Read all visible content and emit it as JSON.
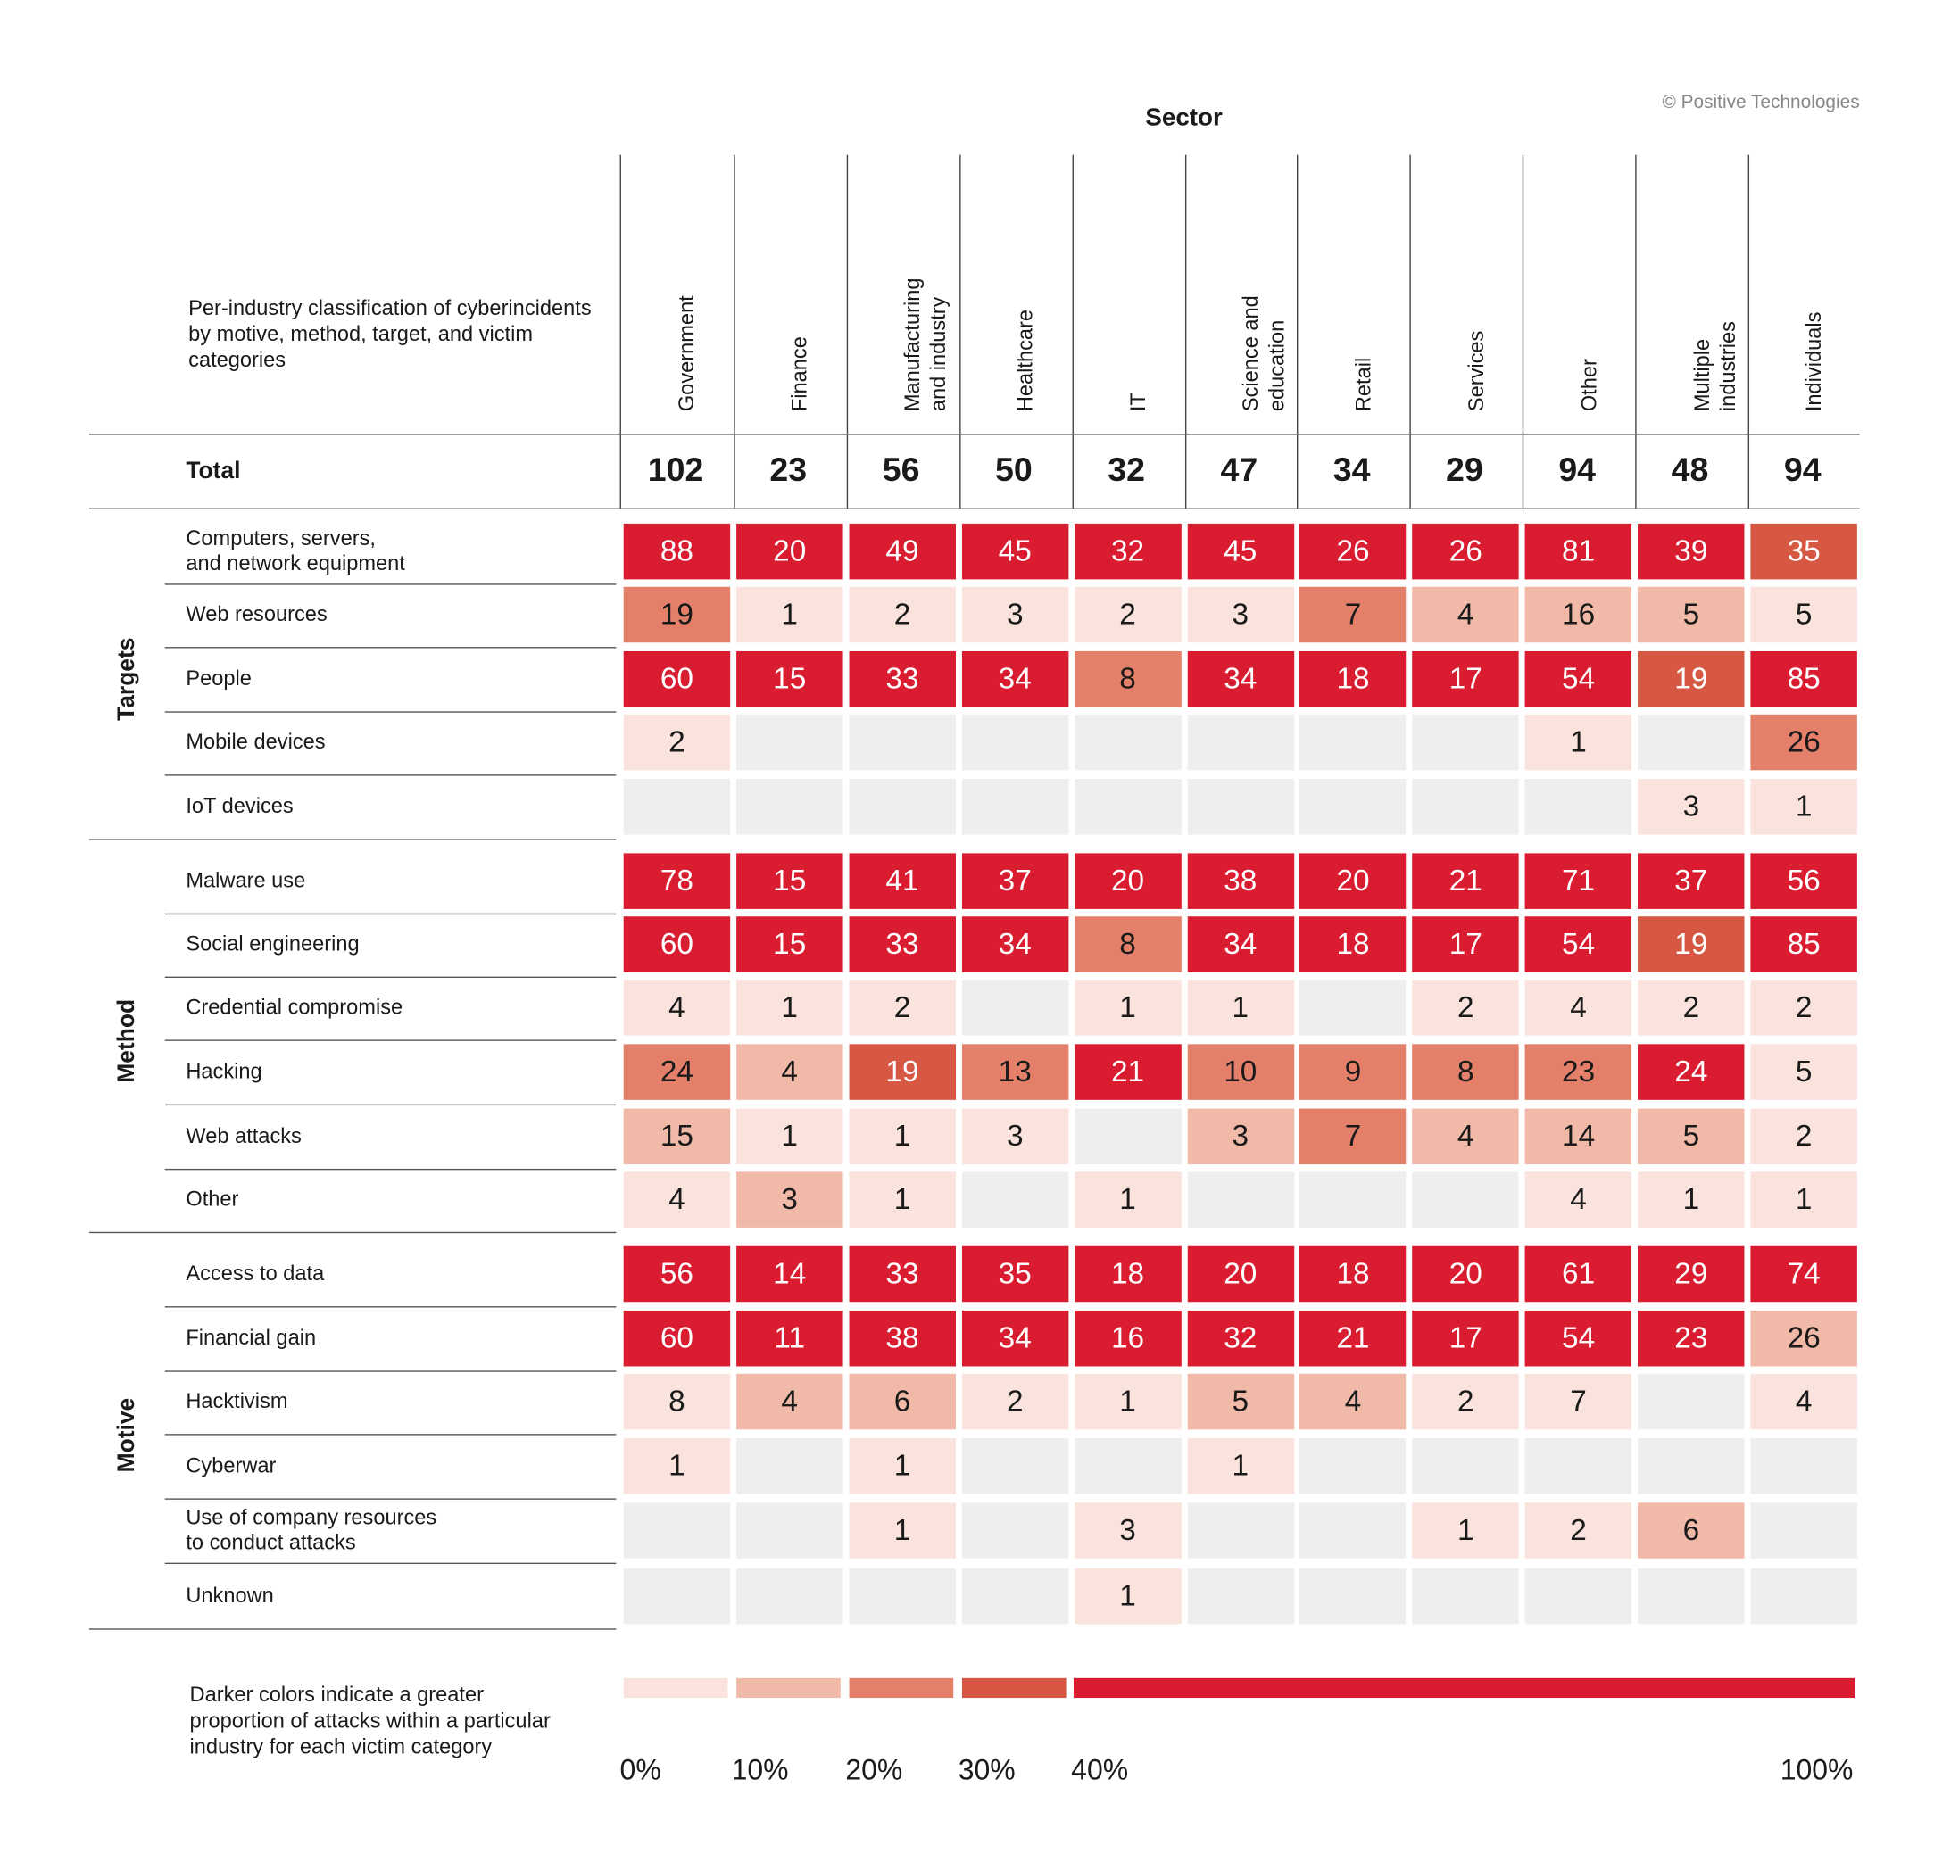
{
  "copyright": "© Positive Technologies",
  "title": "Sector",
  "description": "Per-industry classification of cyberincidents by motive, method, target, and victim categories",
  "chart_data": {
    "type": "heatmap",
    "title": "Sector",
    "columns": [
      "Government",
      "Finance",
      "Manufacturing\nand industry",
      "Healthcare",
      "IT",
      "Science and\neducation",
      "Retail",
      "Services",
      "Other",
      "Multiple\nindustries",
      "Individuals"
    ],
    "total_label": "Total",
    "totals": [
      "102",
      "23",
      "56",
      "50",
      "32",
      "47",
      "34",
      "29",
      "94",
      "48",
      "94"
    ],
    "colors": {
      "empty": "#EEEEEE",
      "levels": [
        "#FAE3DC",
        "#F1BAA8",
        "#E47F6A",
        "#D65742",
        "#D91C2F"
      ]
    },
    "groups": [
      {
        "name": "Targets",
        "rows": [
          {
            "label": "Computers, servers,\nand network equipment",
            "values": [
              "88",
              "20",
              "49",
              "45",
              "32",
              "45",
              "26",
              "26",
              "81",
              "39",
              "35"
            ],
            "levels": [
              4,
              4,
              4,
              4,
              4,
              4,
              4,
              4,
              4,
              4,
              3
            ]
          },
          {
            "label": "Web resources",
            "values": [
              "19",
              "1",
              "2",
              "3",
              "2",
              "3",
              "7",
              "4",
              "16",
              "5",
              "5"
            ],
            "levels": [
              2,
              0,
              0,
              0,
              0,
              0,
              2,
              1,
              1,
              1,
              0
            ]
          },
          {
            "label": "People",
            "values": [
              "60",
              "15",
              "33",
              "34",
              "8",
              "34",
              "18",
              "17",
              "54",
              "19",
              "85"
            ],
            "levels": [
              4,
              4,
              4,
              4,
              2,
              4,
              4,
              4,
              4,
              3,
              4
            ]
          },
          {
            "label": "Mobile devices",
            "values": [
              "2",
              "",
              "",
              "",
              "",
              "",
              "",
              "",
              "1",
              "",
              "26"
            ],
            "levels": [
              0,
              null,
              null,
              null,
              null,
              null,
              null,
              null,
              0,
              null,
              2
            ]
          },
          {
            "label": "IoT devices",
            "values": [
              "",
              "",
              "",
              "",
              "",
              "",
              "",
              "",
              "",
              "3",
              "1"
            ],
            "levels": [
              null,
              null,
              null,
              null,
              null,
              null,
              null,
              null,
              null,
              0,
              0
            ]
          }
        ]
      },
      {
        "name": "Method",
        "rows": [
          {
            "label": "Malware use",
            "values": [
              "78",
              "15",
              "41",
              "37",
              "20",
              "38",
              "20",
              "21",
              "71",
              "37",
              "56"
            ],
            "levels": [
              4,
              4,
              4,
              4,
              4,
              4,
              4,
              4,
              4,
              4,
              4
            ]
          },
          {
            "label": "Social engineering",
            "values": [
              "60",
              "15",
              "33",
              "34",
              "8",
              "34",
              "18",
              "17",
              "54",
              "19",
              "85"
            ],
            "levels": [
              4,
              4,
              4,
              4,
              2,
              4,
              4,
              4,
              4,
              3,
              4
            ]
          },
          {
            "label": "Credential compromise",
            "values": [
              "4",
              "1",
              "2",
              "",
              "1",
              "1",
              "",
              "2",
              "4",
              "2",
              "2"
            ],
            "levels": [
              0,
              0,
              0,
              null,
              0,
              0,
              null,
              0,
              0,
              0,
              0
            ]
          },
          {
            "label": "Hacking",
            "values": [
              "24",
              "4",
              "19",
              "13",
              "21",
              "10",
              "9",
              "8",
              "23",
              "24",
              "5"
            ],
            "levels": [
              2,
              1,
              3,
              2,
              4,
              2,
              2,
              2,
              2,
              4,
              0
            ]
          },
          {
            "label": "Web attacks",
            "values": [
              "15",
              "1",
              "1",
              "3",
              "",
              "3",
              "7",
              "4",
              "14",
              "5",
              "2"
            ],
            "levels": [
              1,
              0,
              0,
              0,
              null,
              1,
              2,
              1,
              1,
              1,
              0
            ]
          },
          {
            "label": "Other",
            "values": [
              "4",
              "3",
              "1",
              "",
              "1",
              "",
              "",
              "",
              "4",
              "1",
              "1"
            ],
            "levels": [
              0,
              1,
              0,
              null,
              0,
              null,
              null,
              null,
              0,
              0,
              0
            ]
          }
        ]
      },
      {
        "name": "Motive",
        "rows": [
          {
            "label": "Access to data",
            "values": [
              "56",
              "14",
              "33",
              "35",
              "18",
              "20",
              "18",
              "20",
              "61",
              "29",
              "74"
            ],
            "levels": [
              4,
              4,
              4,
              4,
              4,
              4,
              4,
              4,
              4,
              4,
              4
            ]
          },
          {
            "label": "Financial gain",
            "values": [
              "60",
              "11",
              "38",
              "34",
              "16",
              "32",
              "21",
              "17",
              "54",
              "23",
              "26"
            ],
            "levels": [
              4,
              4,
              4,
              4,
              4,
              4,
              4,
              4,
              4,
              4,
              1
            ]
          },
          {
            "label": "Hacktivism",
            "values": [
              "8",
              "4",
              "6",
              "2",
              "1",
              "5",
              "4",
              "2",
              "7",
              "",
              "4"
            ],
            "levels": [
              0,
              1,
              1,
              0,
              0,
              1,
              1,
              0,
              0,
              null,
              0
            ]
          },
          {
            "label": "Cyberwar",
            "values": [
              "1",
              "",
              "1",
              "",
              "",
              "1",
              "",
              "",
              "",
              "",
              ""
            ],
            "levels": [
              0,
              null,
              0,
              null,
              null,
              0,
              null,
              null,
              null,
              null,
              null
            ]
          },
          {
            "label": "Use of company resources\nto conduct attacks",
            "values": [
              "",
              "",
              "1",
              "",
              "3",
              "",
              "",
              "1",
              "2",
              "6",
              ""
            ],
            "levels": [
              null,
              null,
              0,
              null,
              0,
              null,
              null,
              0,
              0,
              1,
              null
            ]
          },
          {
            "label": "Unknown",
            "values": [
              "",
              "",
              "",
              "",
              "1",
              "",
              "",
              "",
              "",
              "",
              ""
            ],
            "levels": [
              null,
              null,
              null,
              null,
              0,
              null,
              null,
              null,
              null,
              null,
              null
            ]
          }
        ]
      }
    ],
    "legend": {
      "text": "Darker colors indicate a greater proportion of attacks within a particular industry for each victim category",
      "ticks": [
        "0%",
        "10%",
        "20%",
        "30%",
        "40%",
        "100%"
      ],
      "tick_values": [
        0,
        10,
        20,
        30,
        40,
        100
      ]
    }
  }
}
